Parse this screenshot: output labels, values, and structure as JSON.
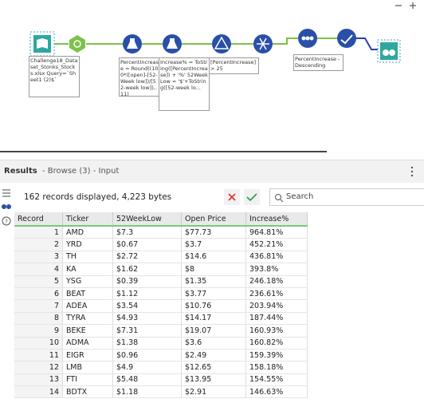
{
  "workflow": {
    "annotations": [
      "Challenge18_Dataset_Stonks_Stocks.xlsx Query=`Sheet1 (2)$`",
      "PercentIncrease = Round((100*([open]-[52-Week low])/[52-week low]),.11)",
      "Increase% = ToString([PercentIncrease]) + '%' 52WeekLow = '$'+ToString([52-week lo...",
      "[PercentIncrease] > 25",
      "PercentIncrease - Descending"
    ]
  },
  "results": {
    "title": "Results",
    "subtitle": "- Browse (3) - Input",
    "summary": "162 records displayed, 4,223 bytes",
    "search_placeholder": "Search"
  },
  "table": {
    "columns": [
      "Record",
      "Ticker",
      "52WeekLow",
      "Open Price",
      "Increase%"
    ],
    "rows": [
      [
        1,
        "AMD",
        "$7.3",
        "$77.73",
        "964.81%"
      ],
      [
        2,
        "YRD",
        "$0.67",
        "$3.7",
        "452.21%"
      ],
      [
        3,
        "TH",
        "$2.72",
        "$14.6",
        "436.81%"
      ],
      [
        4,
        "KA",
        "$1.62",
        "$8",
        "393.8%"
      ],
      [
        5,
        "YSG",
        "$0.39",
        "$1.35",
        "246.18%"
      ],
      [
        6,
        "BEAT",
        "$1.12",
        "$3.77",
        "236.61%"
      ],
      [
        7,
        "ADEA",
        "$3.54",
        "$10.76",
        "203.94%"
      ],
      [
        8,
        "TYRA",
        "$4.93",
        "$14.17",
        "187.44%"
      ],
      [
        9,
        "BEKE",
        "$7.31",
        "$19.07",
        "160.93%"
      ],
      [
        10,
        "ADMA",
        "$1.38",
        "$3.6",
        "160.82%"
      ],
      [
        11,
        "EIGR",
        "$0.96",
        "$2.49",
        "159.39%"
      ],
      [
        12,
        "LMB",
        "$4.9",
        "$12.65",
        "158.18%"
      ],
      [
        13,
        "FTI",
        "$5.48",
        "$13.95",
        "154.55%"
      ],
      [
        14,
        "BDTX",
        "$1.18",
        "$2.91",
        "146.63%"
      ]
    ]
  }
}
